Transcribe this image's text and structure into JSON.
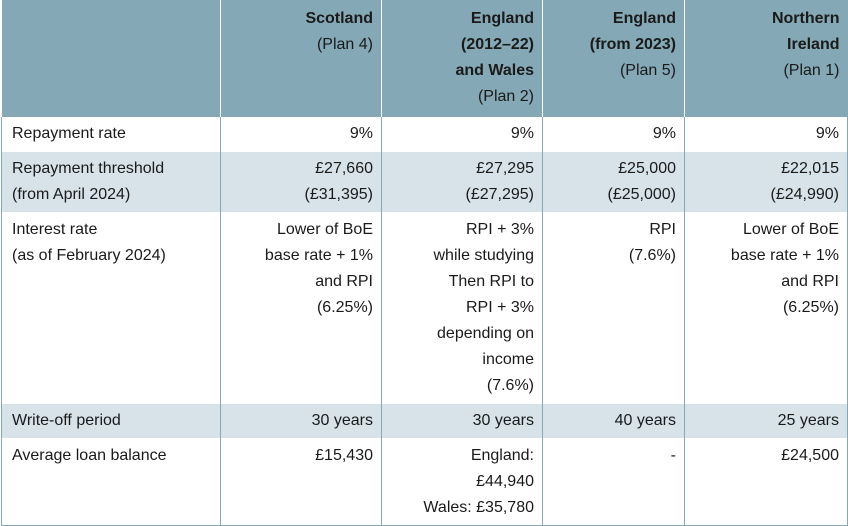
{
  "header": {
    "corner": "",
    "columns": [
      {
        "title": [
          "Scotland"
        ],
        "sub": "(Plan 4)"
      },
      {
        "title": [
          "England",
          "(2012–22)",
          "and Wales"
        ],
        "sub": "(Plan 2)"
      },
      {
        "title": [
          "England",
          "(from 2023)"
        ],
        "sub": "(Plan 5)"
      },
      {
        "title": [
          "Northern",
          "Ireland"
        ],
        "sub": "(Plan 1)"
      }
    ]
  },
  "rows": [
    {
      "label": [
        "Repayment rate"
      ],
      "shade": false,
      "cells": [
        [
          "9%"
        ],
        [
          "9%"
        ],
        [
          "9%"
        ],
        [
          "9%"
        ]
      ]
    },
    {
      "label": [
        "Repayment threshold",
        "(from April 2024)"
      ],
      "shade": true,
      "cells": [
        [
          "£27,660",
          "(£31,395)"
        ],
        [
          "£27,295",
          "(£27,295)"
        ],
        [
          "£25,000",
          "(£25,000)"
        ],
        [
          "£22,015",
          "(£24,990)"
        ]
      ]
    },
    {
      "label": [
        "Interest rate",
        "(as of February 2024)"
      ],
      "shade": false,
      "cells": [
        [
          "Lower of BoE",
          "base rate + 1%",
          "and RPI",
          "(6.25%)"
        ],
        [
          "RPI + 3%",
          "while studying",
          "Then RPI to",
          "RPI + 3%",
          "depending on",
          "income",
          "(7.6%)"
        ],
        [
          "RPI",
          "(7.6%)"
        ],
        [
          "Lower of BoE",
          "base rate + 1%",
          "and RPI",
          "(6.25%)"
        ]
      ]
    },
    {
      "label": [
        "Write-off period"
      ],
      "shade": true,
      "cells": [
        [
          "30 years"
        ],
        [
          "30 years"
        ],
        [
          "40 years"
        ],
        [
          "25 years"
        ]
      ]
    },
    {
      "label": [
        "Average loan balance"
      ],
      "shade": false,
      "cells": [
        [
          "£15,430"
        ],
        [
          "England:",
          "£44,940",
          "Wales: £35,780"
        ],
        [
          "-"
        ],
        [
          "£24,500"
        ]
      ]
    }
  ]
}
